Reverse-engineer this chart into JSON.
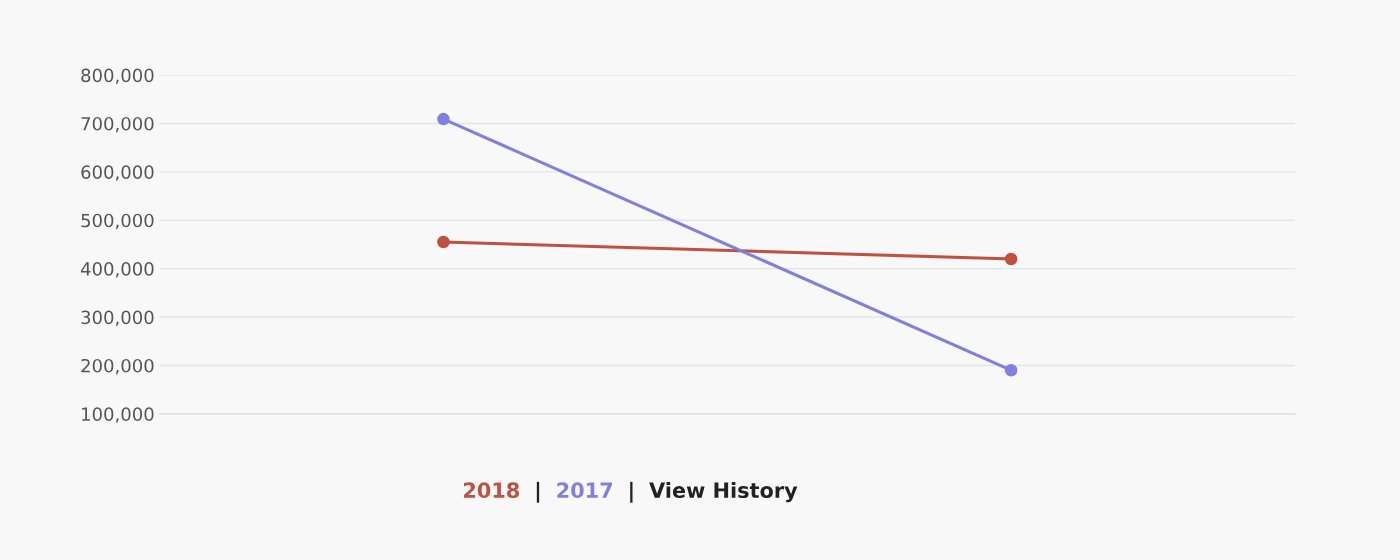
{
  "chart_data": {
    "type": "line",
    "categories": [
      null,
      null
    ],
    "series": [
      {
        "name": "2018",
        "color": "#c0503f",
        "values": [
          455000,
          420000
        ]
      },
      {
        "name": "2017",
        "color": "#8080e0",
        "values": [
          709000,
          190000
        ]
      }
    ],
    "ylim": [
      100000,
      800000
    ],
    "yticks": [
      {
        "value": 100000,
        "label": "100,000"
      },
      {
        "value": 200000,
        "label": "200,000"
      },
      {
        "value": 300000,
        "label": "300,000"
      },
      {
        "value": 400000,
        "label": "400,000"
      },
      {
        "value": 500000,
        "label": "500,000"
      },
      {
        "value": 600000,
        "label": "600,000"
      },
      {
        "value": 700000,
        "label": "700,000"
      },
      {
        "value": 800000,
        "label": "800,000"
      }
    ],
    "grid": "y",
    "legend": "bottom",
    "marker": "circle",
    "line_style": "solid",
    "annotations": [
      "|",
      "|",
      "View History"
    ]
  }
}
